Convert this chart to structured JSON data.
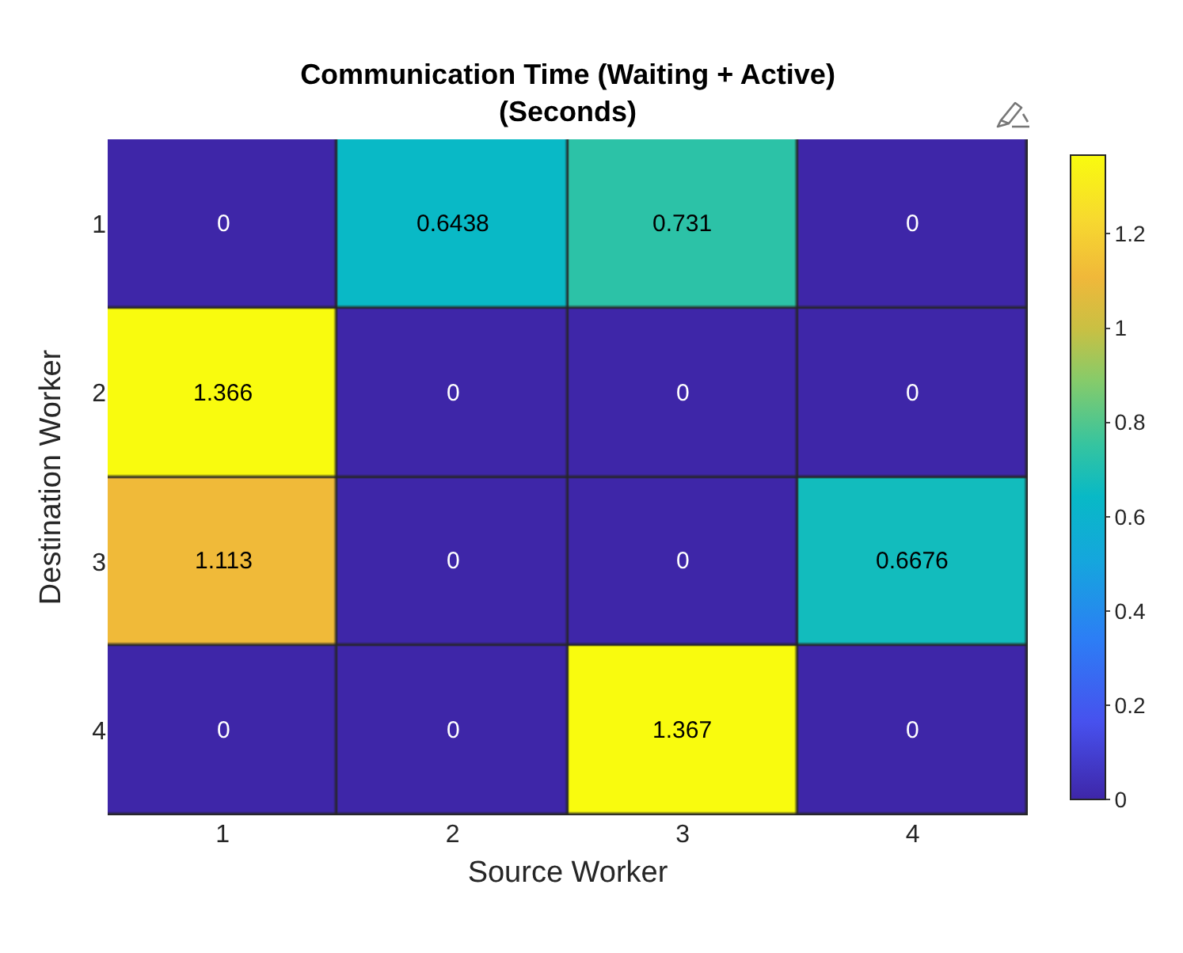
{
  "chart_data": {
    "type": "heatmap",
    "title": "Communication Time (Waiting + Active)\n(Seconds)",
    "xlabel": "Source Worker",
    "ylabel": "Destination Worker",
    "categories": [
      "1",
      "2",
      "3",
      "4"
    ],
    "y_categories": [
      "1",
      "2",
      "3",
      "4"
    ],
    "cells": [
      [
        0,
        0.6438,
        0.731,
        0
      ],
      [
        1.366,
        0,
        0,
        0
      ],
      [
        1.113,
        0,
        0,
        0.6676
      ],
      [
        0,
        0,
        1.367,
        0
      ]
    ],
    "clim": [
      0,
      1.367
    ],
    "cticks": [
      0,
      0.2,
      0.4,
      0.6,
      0.8,
      1,
      1.2
    ],
    "data_labels": true
  }
}
